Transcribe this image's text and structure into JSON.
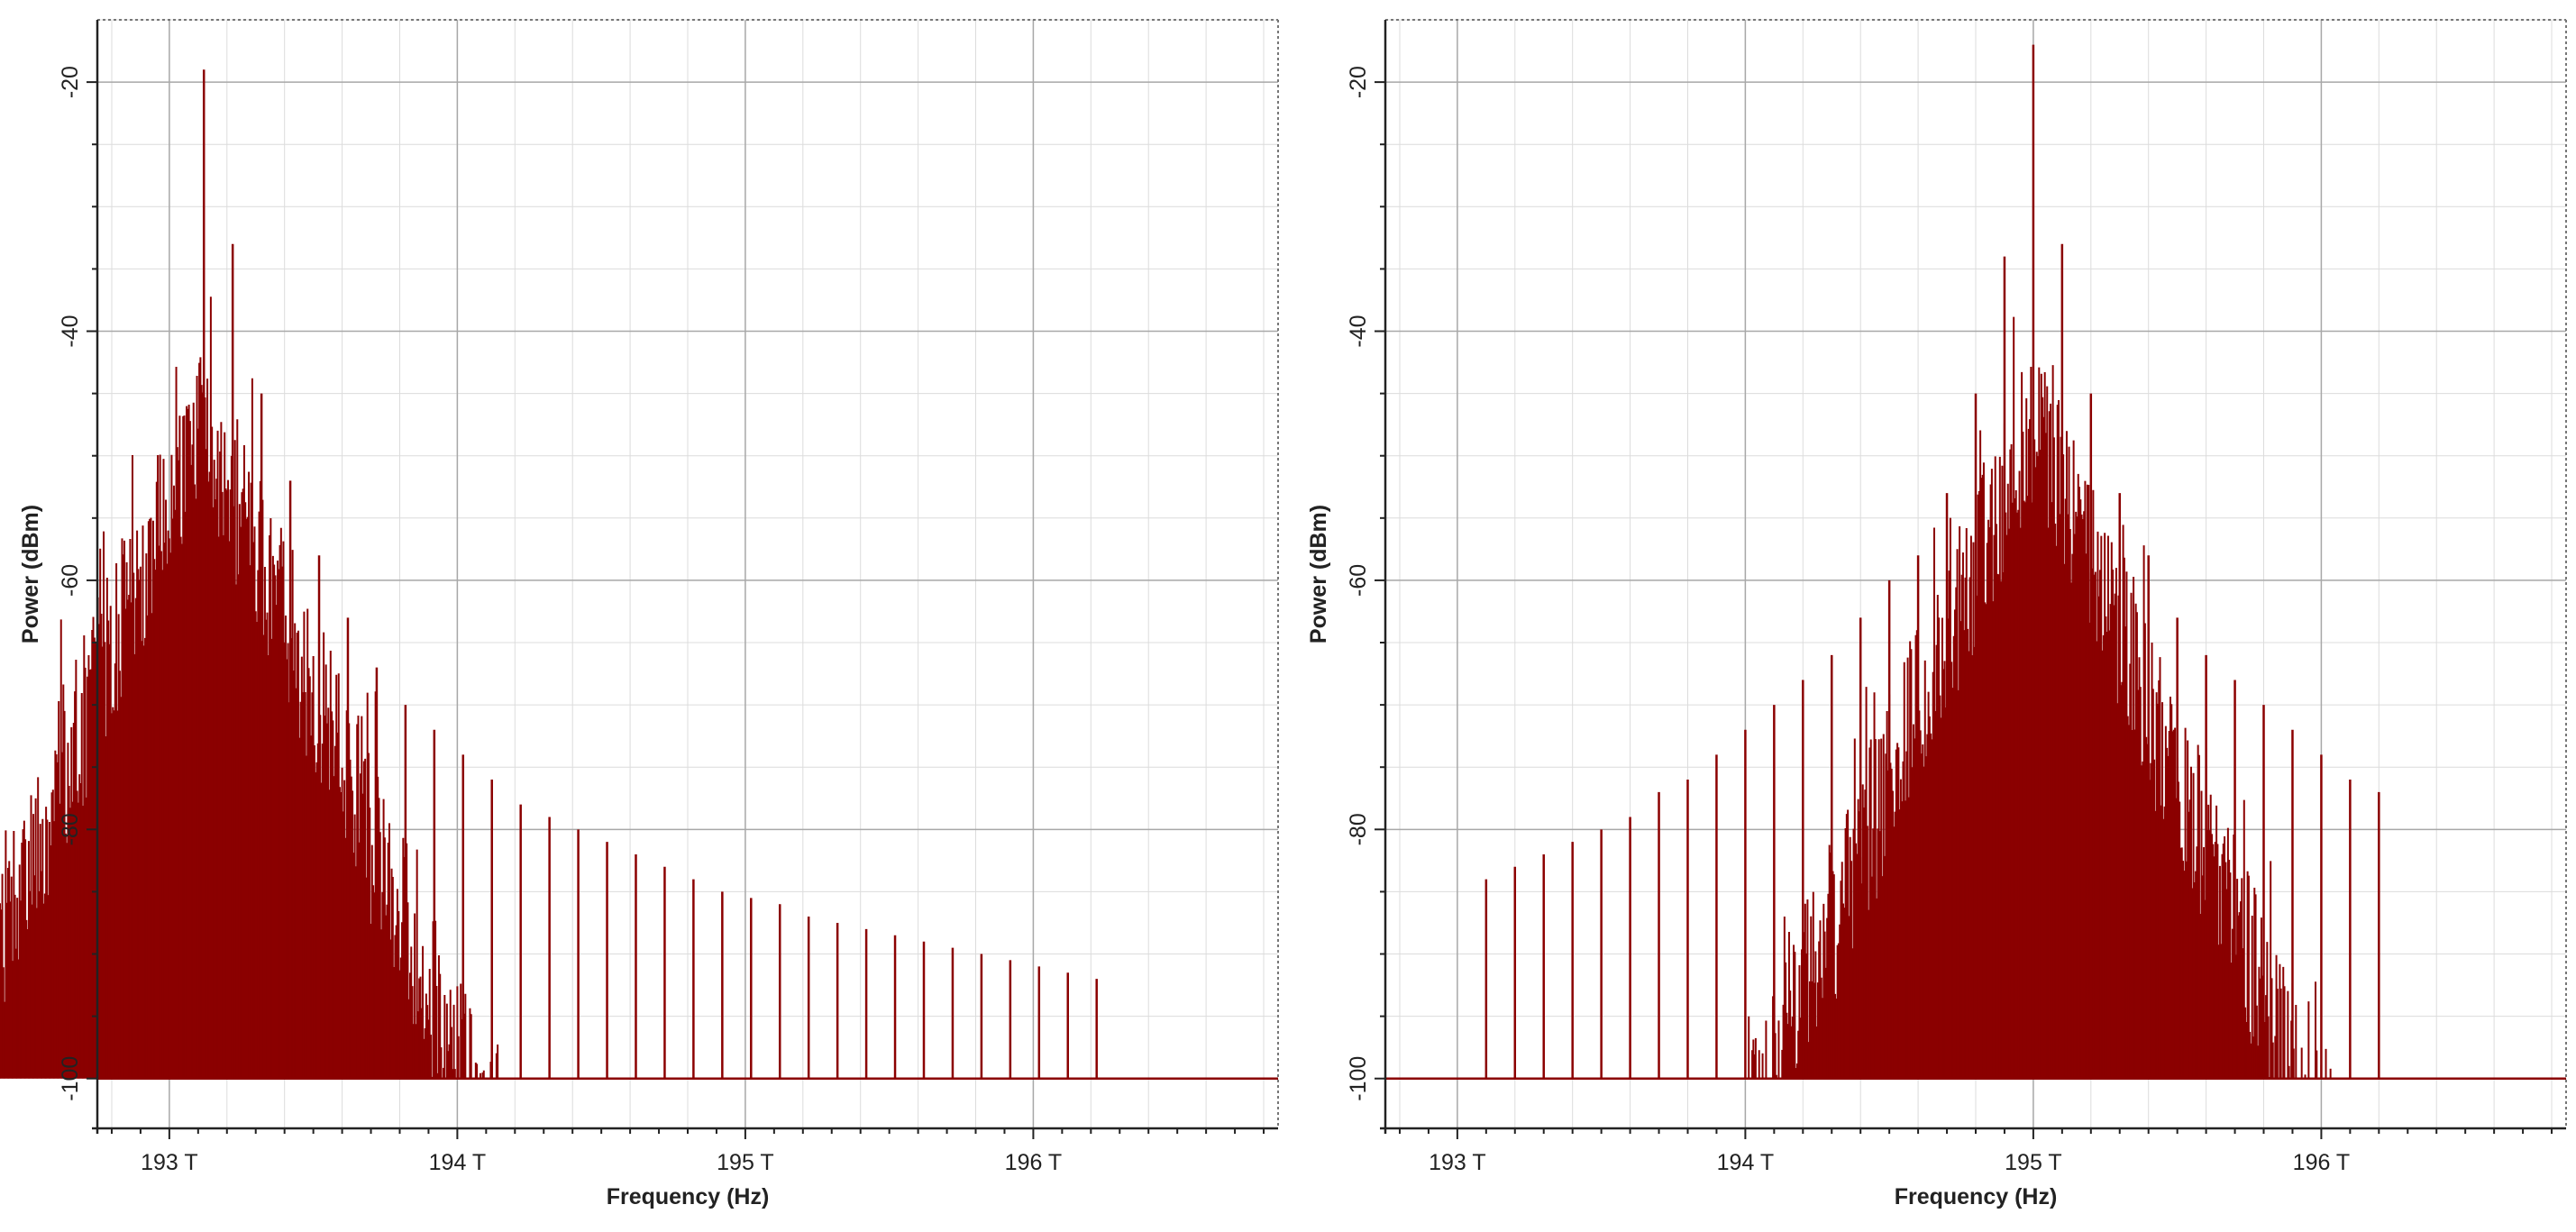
{
  "chart_data": [
    {
      "type": "line",
      "title": "",
      "xlabel": "Frequency (Hz)",
      "ylabel": "Power (dBm)",
      "xlim": [
        192.75,
        196.85
      ],
      "ylim": [
        -104,
        -15
      ],
      "x_ticks": [
        {
          "value": 193,
          "label": "193 T"
        },
        {
          "value": 194,
          "label": "194 T"
        },
        {
          "value": 195,
          "label": "195 T"
        },
        {
          "value": 196,
          "label": "196 T"
        }
      ],
      "y_ticks": [
        {
          "value": -20,
          "label": "-20"
        },
        {
          "value": -40,
          "label": "-40"
        },
        {
          "value": -60,
          "label": "-60"
        },
        {
          "value": -80,
          "label": "-80"
        },
        {
          "value": -100,
          "label": "-100"
        }
      ],
      "grid": true,
      "baseline_dbm": -100,
      "color": "#8b0000",
      "series": [
        {
          "name": "",
          "peaks_x_thz": [
            192.82,
            192.92,
            193.02,
            193.12,
            193.22,
            193.32,
            193.42,
            193.52,
            193.62,
            193.72,
            193.82,
            193.92,
            194.02,
            194.12,
            194.22,
            194.32,
            194.42,
            194.52,
            194.62,
            194.72,
            194.82,
            194.92,
            195.02,
            195.12,
            195.22,
            195.32,
            195.42,
            195.52,
            195.62,
            195.72,
            195.82,
            195.92,
            196.02,
            196.12,
            196.22
          ],
          "peaks_y_dbm": [
            -98,
            -85,
            -91,
            -19,
            -33,
            -45,
            -52,
            -58,
            -63,
            -67,
            -70,
            -72,
            -74,
            -76,
            -78,
            -79,
            -80,
            -81,
            -82,
            -83,
            -84,
            -85,
            -85.5,
            -86,
            -87,
            -87.5,
            -88,
            -88.5,
            -89,
            -89.5,
            -90,
            -90.5,
            -91,
            -91.5,
            -92
          ],
          "noise_center_thz": 193.12,
          "noise_peak_dbm": -40
        },
        {
          "name": "",
          "peaks_x_thz": [
            193.1,
            193.2,
            193.3,
            193.4,
            193.5,
            193.6,
            193.7,
            193.8,
            193.9,
            194.0,
            194.1,
            194.2,
            194.3,
            194.4,
            194.5,
            194.6,
            194.7,
            194.8,
            194.9,
            195.0,
            195.1,
            195.2,
            195.3,
            195.4,
            195.5,
            195.6,
            195.7,
            195.8,
            195.9,
            196.0,
            196.1,
            196.2
          ],
          "peaks_y_dbm": [
            -84,
            -83,
            -82,
            -81,
            -80,
            -79,
            -77,
            -76,
            -74,
            -72,
            -70,
            -68,
            -66,
            -63,
            -60,
            -58,
            -53,
            -45,
            -34,
            -17,
            -33,
            -45,
            -53,
            -58,
            -63,
            -66,
            -68,
            -70,
            -72,
            -74,
            -76,
            -77
          ],
          "noise_center_thz": 195.0,
          "noise_peak_dbm": -40
        }
      ]
    }
  ]
}
